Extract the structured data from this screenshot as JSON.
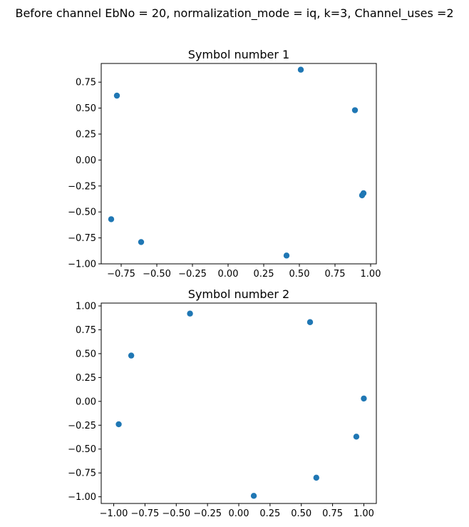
{
  "figure": {
    "suptitle": "Before channel EbNo = 20, normalization_mode = iq, k=3, Channel_uses =2"
  },
  "chart_data": [
    {
      "type": "scatter",
      "title": "Symbol number 1",
      "xlabel": "",
      "ylabel": "",
      "xlim": [
        -0.89,
        1.04
      ],
      "ylim": [
        -1.0,
        0.93
      ],
      "xticks": [
        -0.75,
        -0.5,
        -0.25,
        0.0,
        0.25,
        0.5,
        0.75,
        1.0
      ],
      "xtick_labels": [
        "−0.75",
        "−0.50",
        "−0.25",
        "0.00",
        "0.25",
        "0.50",
        "0.75",
        "1.00"
      ],
      "yticks": [
        -1.0,
        -0.75,
        -0.5,
        -0.25,
        0.0,
        0.25,
        0.5,
        0.75
      ],
      "ytick_labels": [
        "−1.00",
        "−0.75",
        "−0.50",
        "−0.25",
        "0.00",
        "0.25",
        "0.50",
        "0.75"
      ],
      "color": "#1f77b4",
      "points": [
        {
          "x": -0.78,
          "y": 0.62
        },
        {
          "x": 0.51,
          "y": 0.87
        },
        {
          "x": 0.89,
          "y": 0.48
        },
        {
          "x": 0.95,
          "y": -0.32
        },
        {
          "x": 0.94,
          "y": -0.34
        },
        {
          "x": 0.41,
          "y": -0.92
        },
        {
          "x": -0.61,
          "y": -0.79
        },
        {
          "x": -0.82,
          "y": -0.57
        }
      ]
    },
    {
      "type": "scatter",
      "title": "Symbol number 2",
      "xlabel": "",
      "ylabel": "",
      "xlim": [
        -1.1,
        1.1
      ],
      "ylim": [
        -1.07,
        1.03
      ],
      "xticks": [
        -1.0,
        -0.75,
        -0.5,
        -0.25,
        0.0,
        0.25,
        0.5,
        0.75,
        1.0
      ],
      "xtick_labels": [
        "−1.00",
        "−0.75",
        "−0.50",
        "−0.25",
        "0.00",
        "0.25",
        "0.50",
        "0.75",
        "1.00"
      ],
      "yticks": [
        -1.0,
        -0.75,
        -0.5,
        -0.25,
        0.0,
        0.25,
        0.5,
        0.75,
        1.0
      ],
      "ytick_labels": [
        "−1.00",
        "−0.75",
        "−0.50",
        "−0.25",
        "0.00",
        "0.25",
        "0.50",
        "0.75",
        "1.00"
      ],
      "color": "#1f77b4",
      "points": [
        {
          "x": -0.39,
          "y": 0.92
        },
        {
          "x": 0.57,
          "y": 0.83
        },
        {
          "x": -0.86,
          "y": 0.48
        },
        {
          "x": -0.96,
          "y": -0.24
        },
        {
          "x": 1.0,
          "y": 0.03
        },
        {
          "x": 0.94,
          "y": -0.37
        },
        {
          "x": 0.62,
          "y": -0.8
        },
        {
          "x": 0.12,
          "y": -0.99
        }
      ]
    }
  ]
}
